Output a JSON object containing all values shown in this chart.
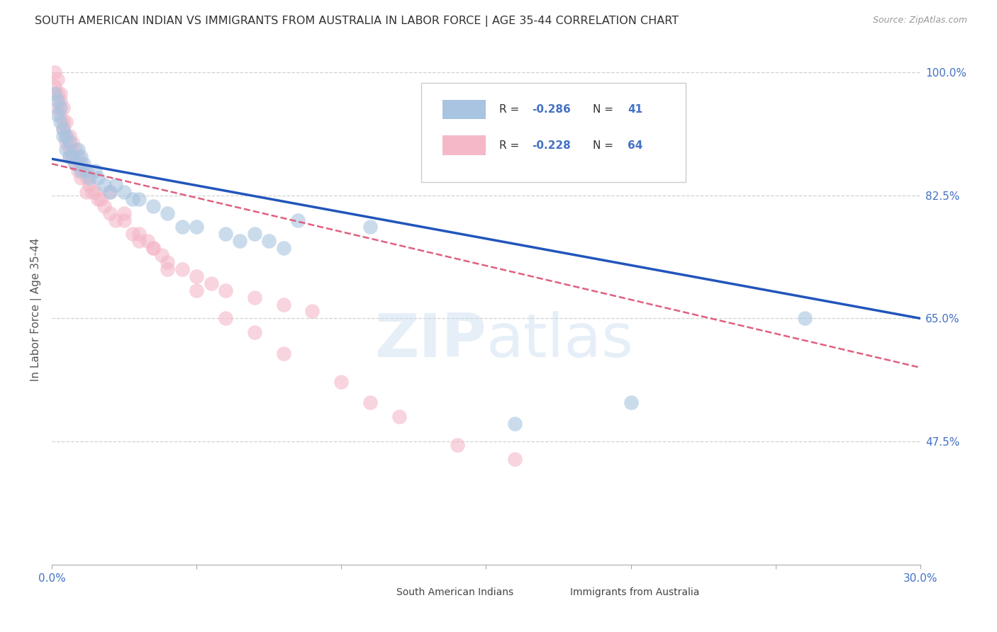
{
  "title": "SOUTH AMERICAN INDIAN VS IMMIGRANTS FROM AUSTRALIA IN LABOR FORCE | AGE 35-44 CORRELATION CHART",
  "source": "Source: ZipAtlas.com",
  "ylabel": "In Labor Force | Age 35-44",
  "xmin": 0.0,
  "xmax": 0.3,
  "ymin": 0.3,
  "ymax": 1.025,
  "yticks": [
    0.475,
    0.65,
    0.825,
    1.0
  ],
  "ytick_labels": [
    "47.5%",
    "65.0%",
    "82.5%",
    "100.0%"
  ],
  "xticks": [
    0.0,
    0.05,
    0.1,
    0.15,
    0.2,
    0.25,
    0.3
  ],
  "xtick_labels": [
    "0.0%",
    "",
    "",
    "",
    "",
    "",
    "30.0%"
  ],
  "grid_color": "#cccccc",
  "background_color": "#ffffff",
  "watermark_text": "ZIPatlas",
  "blue_scatter_x": [
    0.001,
    0.002,
    0.002,
    0.003,
    0.003,
    0.004,
    0.004,
    0.005,
    0.005,
    0.006,
    0.006,
    0.007,
    0.008,
    0.009,
    0.01,
    0.01,
    0.011,
    0.012,
    0.013,
    0.015,
    0.016,
    0.018,
    0.02,
    0.022,
    0.025,
    0.028,
    0.03,
    0.035,
    0.04,
    0.045,
    0.05,
    0.06,
    0.065,
    0.07,
    0.075,
    0.08,
    0.085,
    0.11,
    0.16,
    0.2,
    0.26
  ],
  "blue_scatter_y": [
    0.97,
    0.96,
    0.94,
    0.95,
    0.93,
    0.92,
    0.91,
    0.91,
    0.89,
    0.9,
    0.88,
    0.88,
    0.87,
    0.89,
    0.88,
    0.86,
    0.87,
    0.86,
    0.85,
    0.86,
    0.85,
    0.84,
    0.83,
    0.84,
    0.83,
    0.82,
    0.82,
    0.81,
    0.8,
    0.78,
    0.78,
    0.77,
    0.76,
    0.77,
    0.76,
    0.75,
    0.79,
    0.78,
    0.5,
    0.53,
    0.65
  ],
  "pink_scatter_x": [
    0.001,
    0.001,
    0.002,
    0.002,
    0.002,
    0.003,
    0.003,
    0.003,
    0.004,
    0.004,
    0.004,
    0.005,
    0.005,
    0.005,
    0.006,
    0.006,
    0.006,
    0.007,
    0.007,
    0.008,
    0.008,
    0.009,
    0.009,
    0.01,
    0.01,
    0.011,
    0.012,
    0.012,
    0.013,
    0.014,
    0.015,
    0.016,
    0.017,
    0.018,
    0.02,
    0.022,
    0.025,
    0.028,
    0.03,
    0.033,
    0.035,
    0.038,
    0.04,
    0.045,
    0.05,
    0.055,
    0.06,
    0.07,
    0.08,
    0.09,
    0.02,
    0.025,
    0.03,
    0.035,
    0.04,
    0.05,
    0.06,
    0.07,
    0.08,
    0.1,
    0.11,
    0.12,
    0.14,
    0.16
  ],
  "pink_scatter_y": [
    1.0,
    0.98,
    0.99,
    0.97,
    0.95,
    0.97,
    0.96,
    0.94,
    0.95,
    0.93,
    0.92,
    0.93,
    0.91,
    0.9,
    0.91,
    0.89,
    0.88,
    0.9,
    0.88,
    0.89,
    0.87,
    0.88,
    0.86,
    0.87,
    0.85,
    0.86,
    0.85,
    0.83,
    0.84,
    0.83,
    0.83,
    0.82,
    0.82,
    0.81,
    0.8,
    0.79,
    0.79,
    0.77,
    0.76,
    0.76,
    0.75,
    0.74,
    0.73,
    0.72,
    0.71,
    0.7,
    0.69,
    0.68,
    0.67,
    0.66,
    0.83,
    0.8,
    0.77,
    0.75,
    0.72,
    0.69,
    0.65,
    0.63,
    0.6,
    0.56,
    0.53,
    0.51,
    0.47,
    0.45
  ],
  "blue_line_x0": 0.0,
  "blue_line_y0": 0.877,
  "blue_line_x1": 0.3,
  "blue_line_y1": 0.65,
  "pink_line_x0": 0.0,
  "pink_line_y0": 0.87,
  "pink_line_x1": 0.3,
  "pink_line_y1": 0.58,
  "legend_R_blue": "-0.286",
  "legend_N_blue": "41",
  "legend_R_pink": "-0.228",
  "legend_N_pink": "64",
  "title_color": "#333333",
  "axis_label_color": "#555555",
  "tick_color": "#4472c4",
  "blue_scatter_color": "#a8c4e0",
  "pink_scatter_color": "#f4b8c8",
  "blue_line_color": "#2255bb",
  "pink_line_color": "#e06080"
}
